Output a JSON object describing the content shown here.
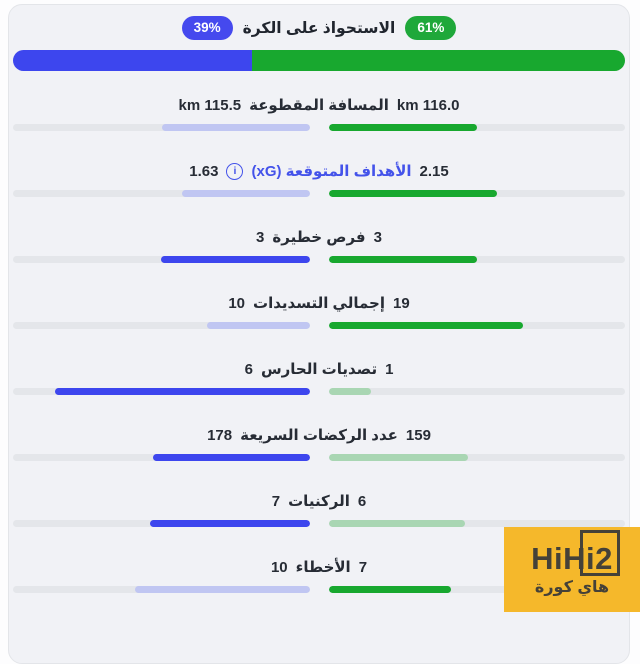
{
  "possession": {
    "label": "الاستحواذ على الكرة",
    "right_badge": "61%",
    "left_badge": "39%",
    "right_pct": 61,
    "left_pct": 39
  },
  "stats": [
    {
      "label": "المسافة المقطوعة",
      "right_value": "116.0 km",
      "left_value": "115.5 km",
      "right_pct": 50.1,
      "left_pct": 49.9,
      "right_state": "strong",
      "left_state": "faded",
      "label_blue": false,
      "has_info": false
    },
    {
      "label": "الأهداف المتوقعة (xG)",
      "right_value": "2.15",
      "left_value": "1.63",
      "right_pct": 56.9,
      "left_pct": 43.1,
      "right_state": "strong",
      "left_state": "faded",
      "label_blue": true,
      "has_info": true
    },
    {
      "label": "فرص خطيرة",
      "right_value": "3",
      "left_value": "3",
      "right_pct": 50,
      "left_pct": 50,
      "right_state": "strong",
      "left_state": "strong",
      "label_blue": false,
      "has_info": false
    },
    {
      "label": "إجمالي التسديدات",
      "right_value": "19",
      "left_value": "10",
      "right_pct": 65.5,
      "left_pct": 34.5,
      "right_state": "strong",
      "left_state": "faded",
      "label_blue": false,
      "has_info": false
    },
    {
      "label": "تصديات الحارس",
      "right_value": "1",
      "left_value": "6",
      "right_pct": 14.3,
      "left_pct": 85.7,
      "right_state": "faded",
      "left_state": "strong",
      "label_blue": false,
      "has_info": false
    },
    {
      "label": "عدد الركضات السريعة",
      "right_value": "159",
      "left_value": "178",
      "right_pct": 47.2,
      "left_pct": 52.8,
      "right_state": "faded",
      "left_state": "strong",
      "label_blue": false,
      "has_info": false
    },
    {
      "label": "الركنيات",
      "right_value": "6",
      "left_value": "7",
      "right_pct": 46.2,
      "left_pct": 53.8,
      "right_state": "faded",
      "left_state": "strong",
      "label_blue": false,
      "has_info": false
    },
    {
      "label": "الأخطاء",
      "right_value": "7",
      "left_value": "10",
      "right_pct": 41.2,
      "left_pct": 58.8,
      "right_state": "strong",
      "left_state": "faded",
      "label_blue": false,
      "has_info": false
    }
  ],
  "watermark": {
    "title": "HiHi2",
    "subtitle": "هاي كورة"
  },
  "info_icon_glyph": "i",
  "colors": {
    "green_strong": "#18a82f",
    "green_faded": "#a9d6b3",
    "blue_strong": "#3d46ee",
    "blue_faded": "#c0c6f2",
    "badge_green": "#1fa83a",
    "badge_blue": "#4549ee",
    "track": "#e4e6ea",
    "xg_blue": "#4453ea",
    "watermark_bg": "#f5b82b",
    "watermark_text": "#454138"
  }
}
